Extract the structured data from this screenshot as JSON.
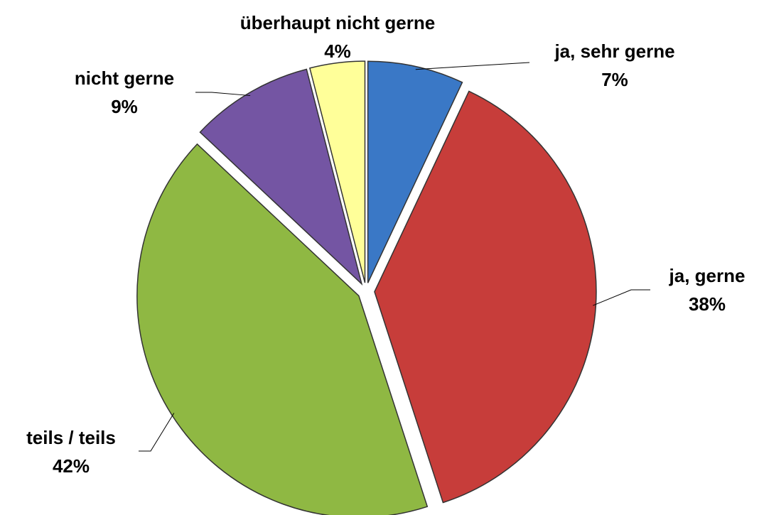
{
  "chart_data": {
    "type": "pie",
    "categories": [
      "ja, sehr gerne",
      "ja, gerne",
      "teils / teils",
      "nicht gerne",
      "überhaupt nicht gerne"
    ],
    "values": [
      7,
      38,
      42,
      9,
      4
    ],
    "value_labels": [
      "7%",
      "38%",
      "42%",
      "9%",
      "4%"
    ],
    "colors": [
      "#3a78c6",
      "#c73d3a",
      "#8fb843",
      "#7455a3",
      "#ffff99"
    ]
  }
}
